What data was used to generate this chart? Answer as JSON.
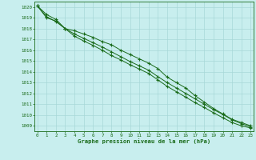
{
  "title": "Graphe pression niveau de la mer (hPa)",
  "xlim": [
    -0.3,
    23.3
  ],
  "ylim": [
    1008.5,
    1020.5
  ],
  "yticks": [
    1009,
    1010,
    1011,
    1012,
    1013,
    1014,
    1015,
    1016,
    1017,
    1018,
    1019,
    1020
  ],
  "xticks": [
    0,
    1,
    2,
    3,
    4,
    5,
    6,
    7,
    8,
    9,
    10,
    11,
    12,
    13,
    14,
    15,
    16,
    17,
    18,
    19,
    20,
    21,
    22,
    23
  ],
  "background_color": "#c8eeee",
  "grid_color": "#a8d8d8",
  "line_color": "#1a6b1a",
  "label_color": "#1a6b1a",
  "series1": [
    1020.1,
    1019.3,
    1018.85,
    1018.0,
    1017.8,
    1017.5,
    1017.2,
    1016.8,
    1016.5,
    1016.0,
    1015.6,
    1015.2,
    1014.8,
    1014.3,
    1013.5,
    1013.0,
    1012.5,
    1011.8,
    1011.2,
    1010.6,
    1010.1,
    1009.6,
    1009.3,
    1009.0
  ],
  "series2": [
    1020.1,
    1019.0,
    1018.7,
    1018.0,
    1017.5,
    1017.1,
    1016.7,
    1016.3,
    1015.85,
    1015.4,
    1014.95,
    1014.55,
    1014.15,
    1013.55,
    1013.0,
    1012.5,
    1012.0,
    1011.5,
    1011.0,
    1010.5,
    1010.05,
    1009.55,
    1009.2,
    1008.9
  ],
  "series3": [
    1020.1,
    1019.1,
    1018.65,
    1018.0,
    1017.3,
    1016.85,
    1016.45,
    1016.0,
    1015.5,
    1015.1,
    1014.65,
    1014.25,
    1013.85,
    1013.25,
    1012.65,
    1012.15,
    1011.65,
    1011.15,
    1010.7,
    1010.2,
    1009.75,
    1009.3,
    1009.0,
    1008.8
  ]
}
